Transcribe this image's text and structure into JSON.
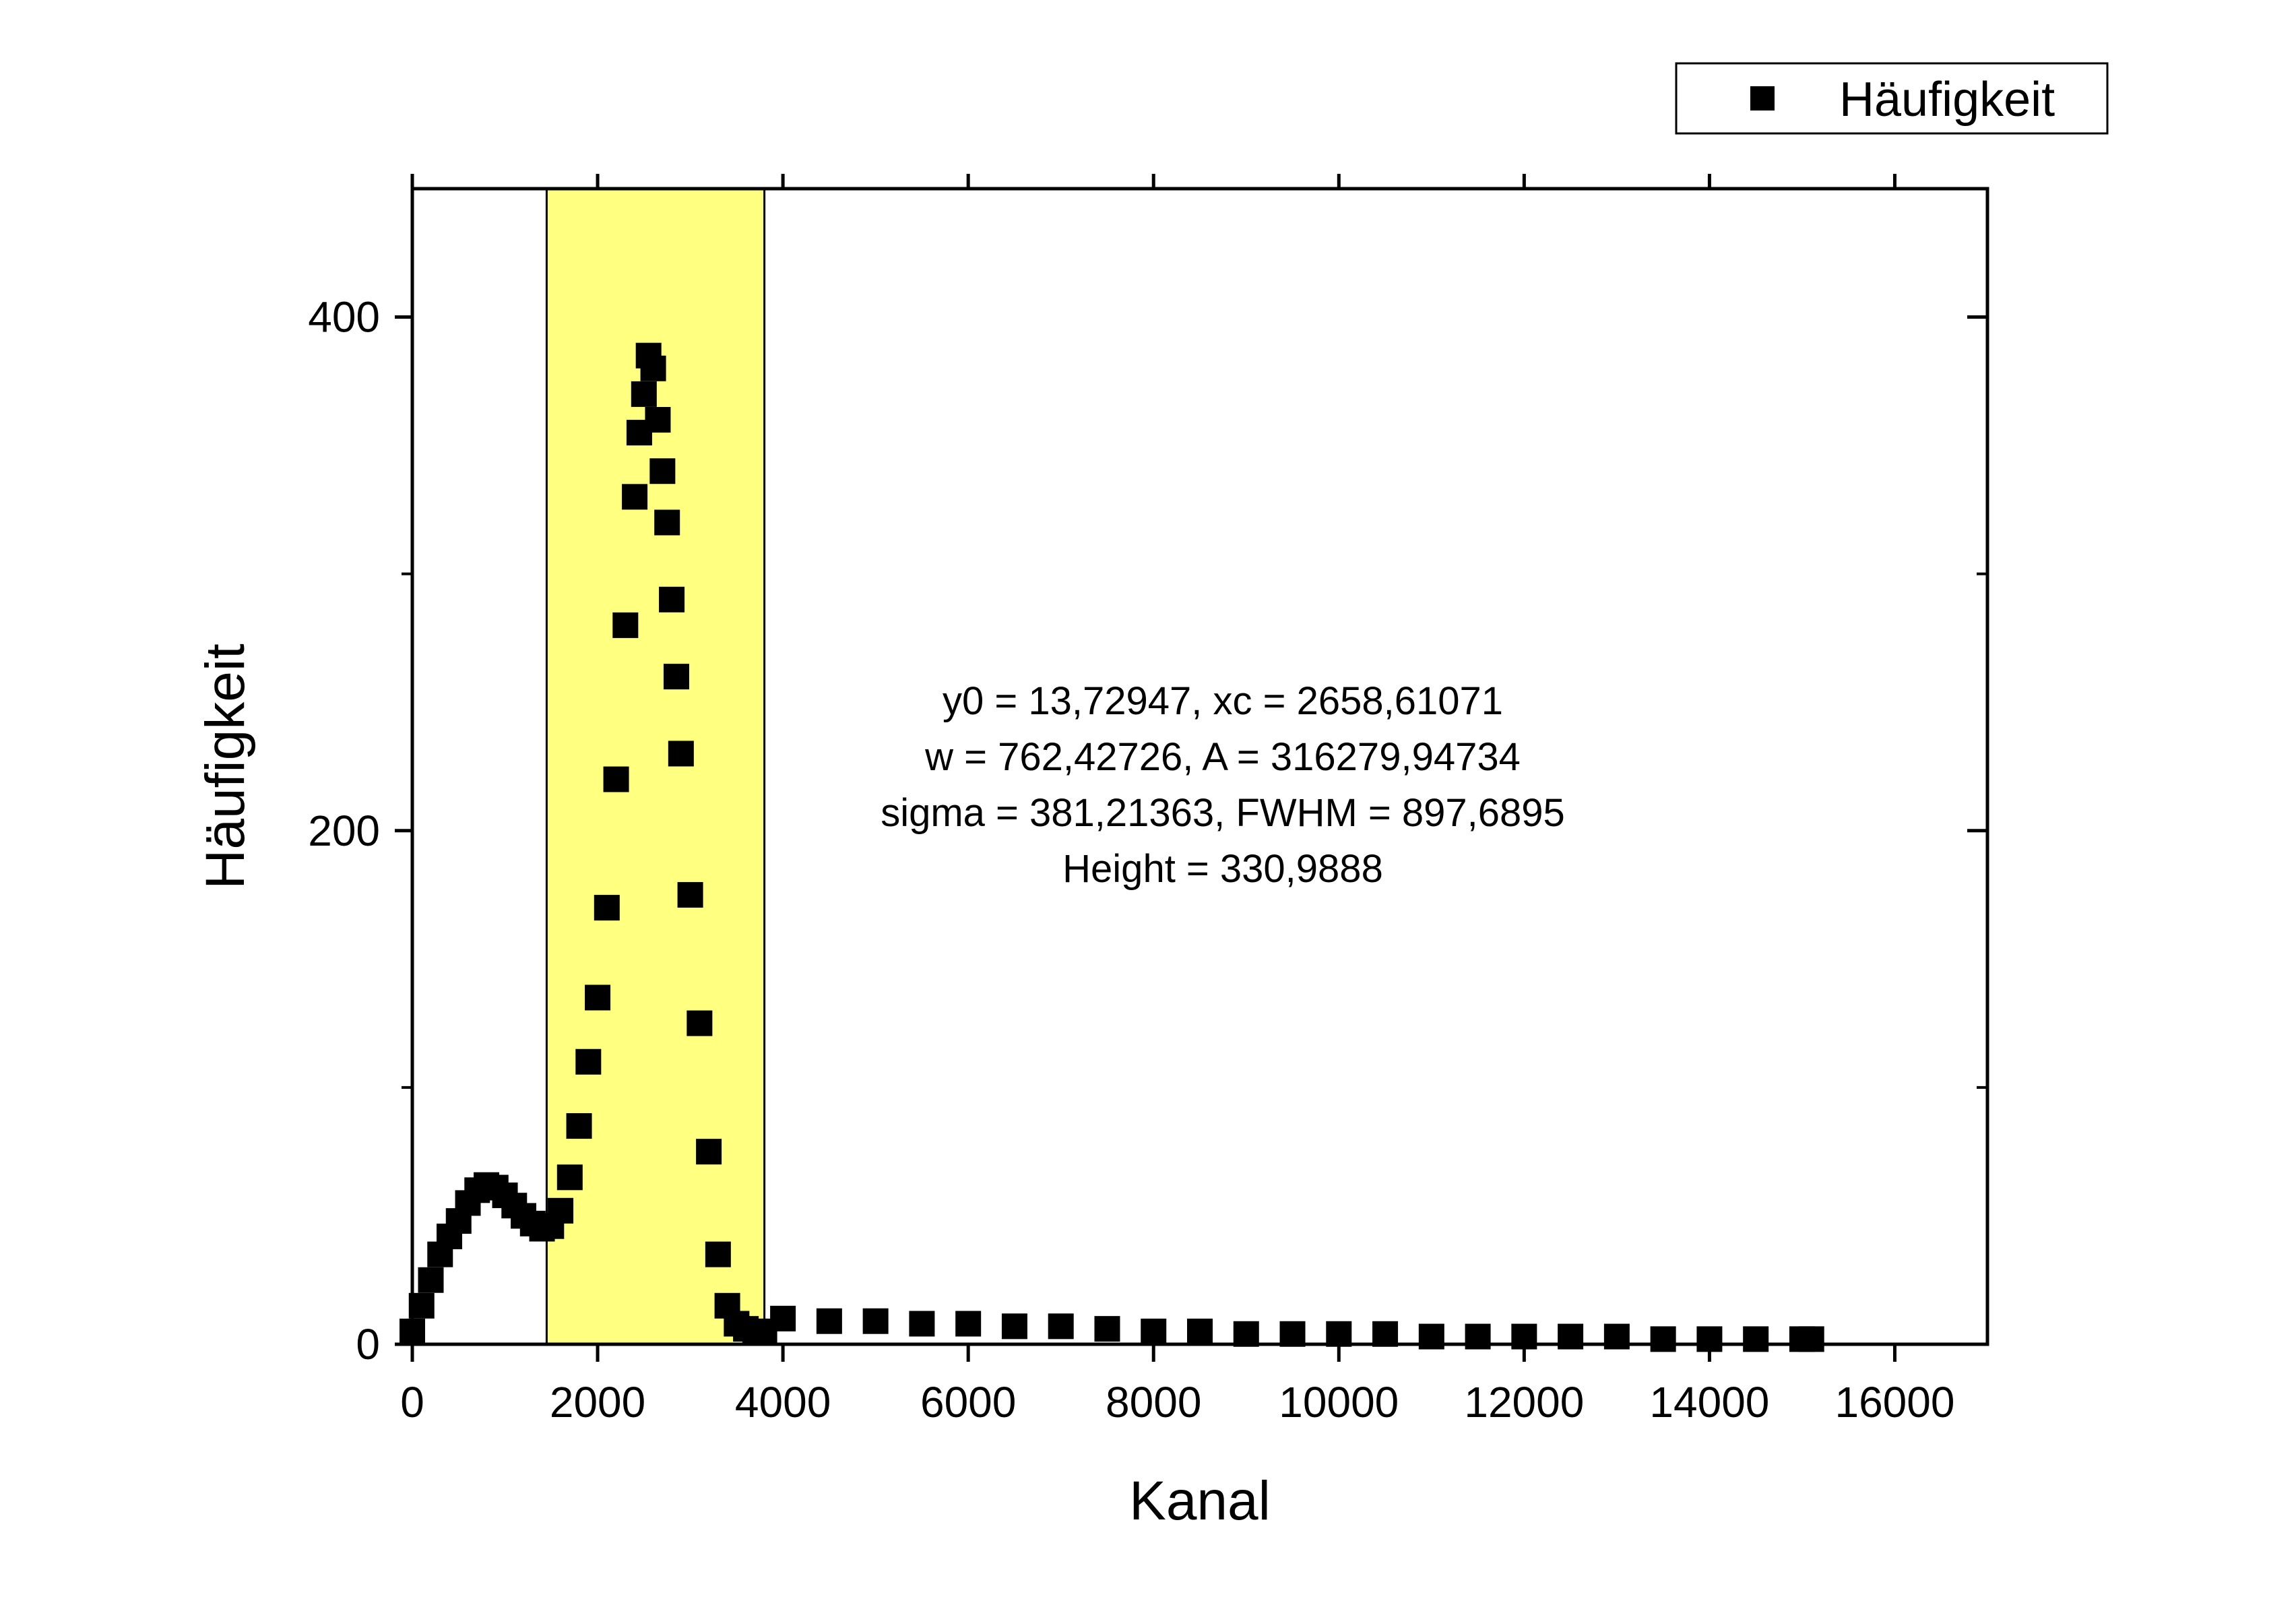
{
  "chart_data": {
    "type": "scatter",
    "xlabel": "Kanal",
    "ylabel": "Häufigkeit",
    "xlim": [
      0,
      17000
    ],
    "ylim": [
      0,
      450
    ],
    "xticks": [
      0,
      2000,
      4000,
      6000,
      8000,
      10000,
      12000,
      14000,
      16000
    ],
    "xtick_labels": [
      "0",
      "2000",
      "4000",
      "6000",
      "8000",
      "10000",
      "12000",
      "14000",
      "16000"
    ],
    "yticks_major": [
      0,
      200,
      400
    ],
    "ytick_labels": [
      "0",
      "200",
      "400"
    ],
    "yticks_minor": [
      100,
      300
    ],
    "grid": false,
    "legend": {
      "position": "top-right",
      "entries": [
        "Häufigkeit"
      ]
    },
    "marker_color": "#000000",
    "highlight_region": {
      "x_start": 1450,
      "x_end": 3800,
      "color": "#ffff80"
    },
    "annotation_lines": [
      "y0 = 13,72947, xc = 2658,61071",
      "w = 762,42726, A = 316279,94734",
      "sigma = 381,21363, FWHM = 897,6895",
      "Height = 330,9888"
    ],
    "series": [
      {
        "name": "Häufigkeit",
        "x": [
          0,
          100,
          200,
          300,
          400,
          500,
          600,
          700,
          800,
          900,
          1000,
          1100,
          1200,
          1300,
          1400,
          1500,
          1600,
          1700,
          1800,
          1900,
          2000,
          2100,
          2200,
          2300,
          2400,
          2450,
          2500,
          2550,
          2600,
          2650,
          2700,
          2750,
          2800,
          2850,
          2900,
          3000,
          3100,
          3200,
          3300,
          3400,
          3500,
          3600,
          3700,
          3800,
          4000,
          4500,
          5000,
          5500,
          6000,
          6500,
          7000,
          7500,
          8000,
          8500,
          9000,
          9500,
          10000,
          10500,
          11000,
          11500,
          12000,
          12500,
          13000,
          13500,
          14000,
          14500,
          15000,
          15100
        ],
        "y": [
          5,
          15,
          25,
          35,
          42,
          48,
          55,
          60,
          62,
          61,
          58,
          54,
          50,
          47,
          45,
          46,
          52,
          65,
          85,
          110,
          135,
          170,
          220,
          280,
          330,
          355,
          370,
          385,
          380,
          360,
          340,
          320,
          290,
          260,
          230,
          175,
          125,
          75,
          35,
          15,
          8,
          6,
          5,
          5,
          10,
          9,
          9,
          8,
          8,
          7,
          7,
          6,
          5,
          5,
          4,
          4,
          4,
          4,
          3,
          3,
          3,
          3,
          3,
          2,
          2,
          2,
          2,
          2
        ]
      }
    ]
  }
}
